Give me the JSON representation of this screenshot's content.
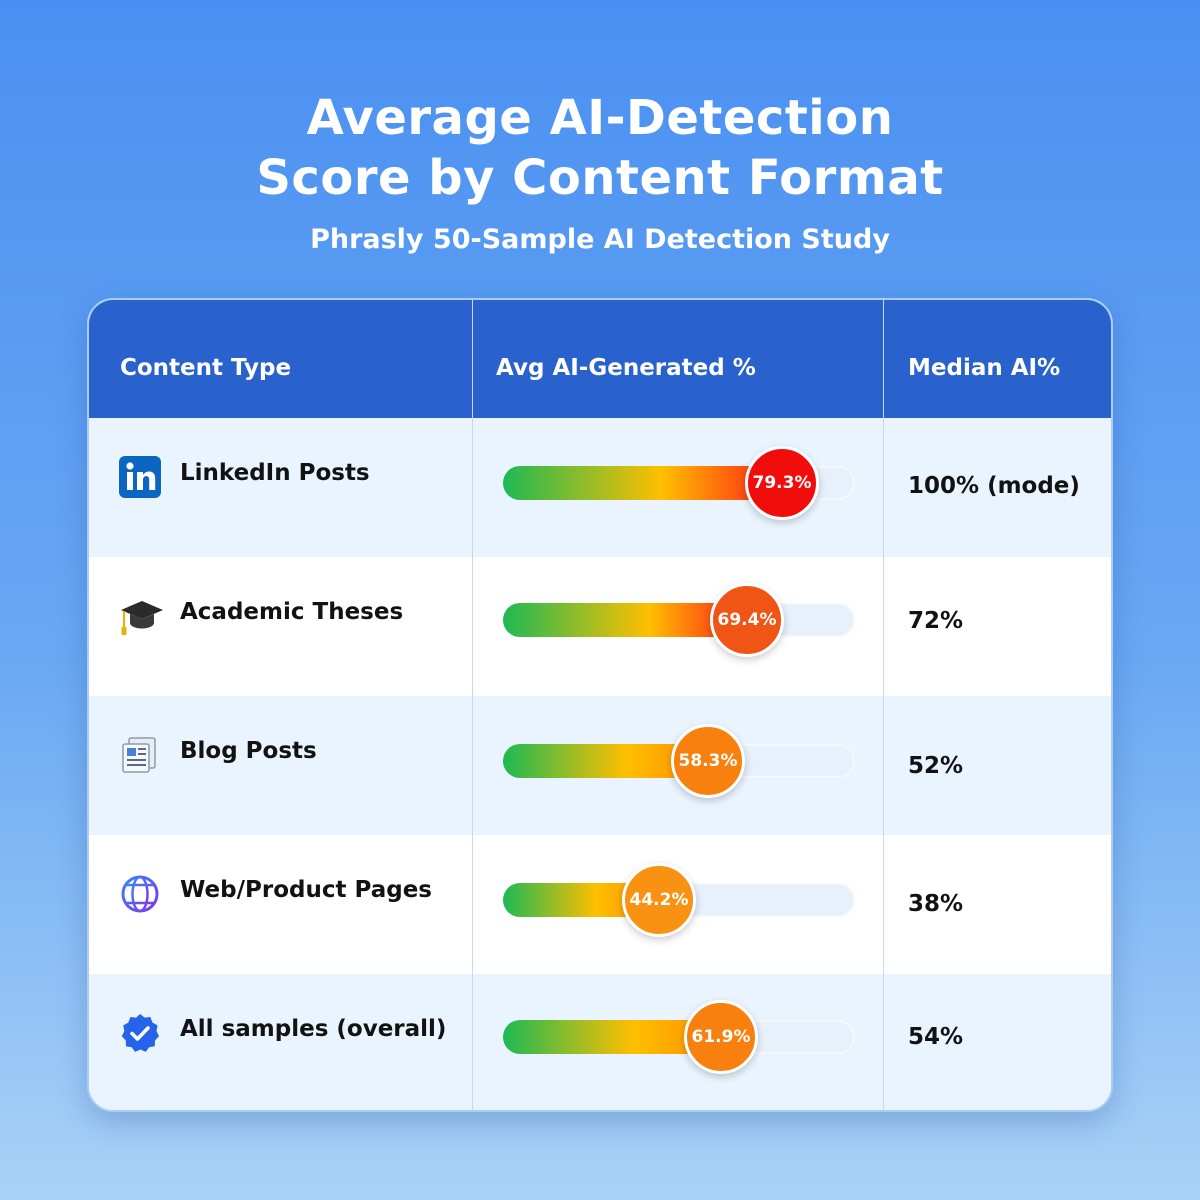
{
  "header": {
    "title_line1": "Average AI-Detection",
    "title_line2": "Score by Content Format",
    "subtitle": "Phrasly 50-Sample AI Detection Study"
  },
  "columns": [
    "Content Type",
    "Avg AI-Generated %",
    "Median AI%"
  ],
  "rows": [
    {
      "label": "LinkedIn Posts",
      "icon": "linkedin-icon",
      "avg_label": "79.3%",
      "median": "100% (mode)",
      "knob_color": "#f20d0d"
    },
    {
      "label": "Academic Theses",
      "icon": "graduation-cap-icon",
      "avg_label": "69.4%",
      "median": "72%",
      "knob_color": "#f05515"
    },
    {
      "label": "Blog Posts",
      "icon": "newspaper-icon",
      "avg_label": "58.3%",
      "median": "52%",
      "knob_color": "#f7800e"
    },
    {
      "label": "Web/Product Pages",
      "icon": "globe-icon",
      "avg_label": "44.2%",
      "median": "38%",
      "knob_color": "#f99212"
    },
    {
      "label": "All samples (overall)",
      "icon": "verified-check-icon",
      "avg_label": "61.9%",
      "median": "54%",
      "knob_color": "#f7800e"
    }
  ],
  "chart_data": {
    "type": "bar",
    "categories": [
      "LinkedIn Posts",
      "Academic Theses",
      "Blog Posts",
      "Web/Product Pages",
      "All samples (overall)"
    ],
    "series": [
      {
        "name": "Avg AI-Generated %",
        "values": [
          79.3,
          69.4,
          58.3,
          44.2,
          61.9
        ]
      }
    ],
    "medians": [
      "100% (mode)",
      "72%",
      "52%",
      "38%",
      "54%"
    ],
    "title": "Average AI-Detection Score by Content Format",
    "subtitle": "Phrasly 50-Sample AI Detection Study",
    "xlabel": "",
    "ylabel": "Avg AI-Generated %",
    "ylim": [
      0,
      100
    ],
    "grid": false,
    "colors": {
      "low": "#1db954",
      "mid": "#ffbf00",
      "high": "#ff1a1a"
    }
  }
}
